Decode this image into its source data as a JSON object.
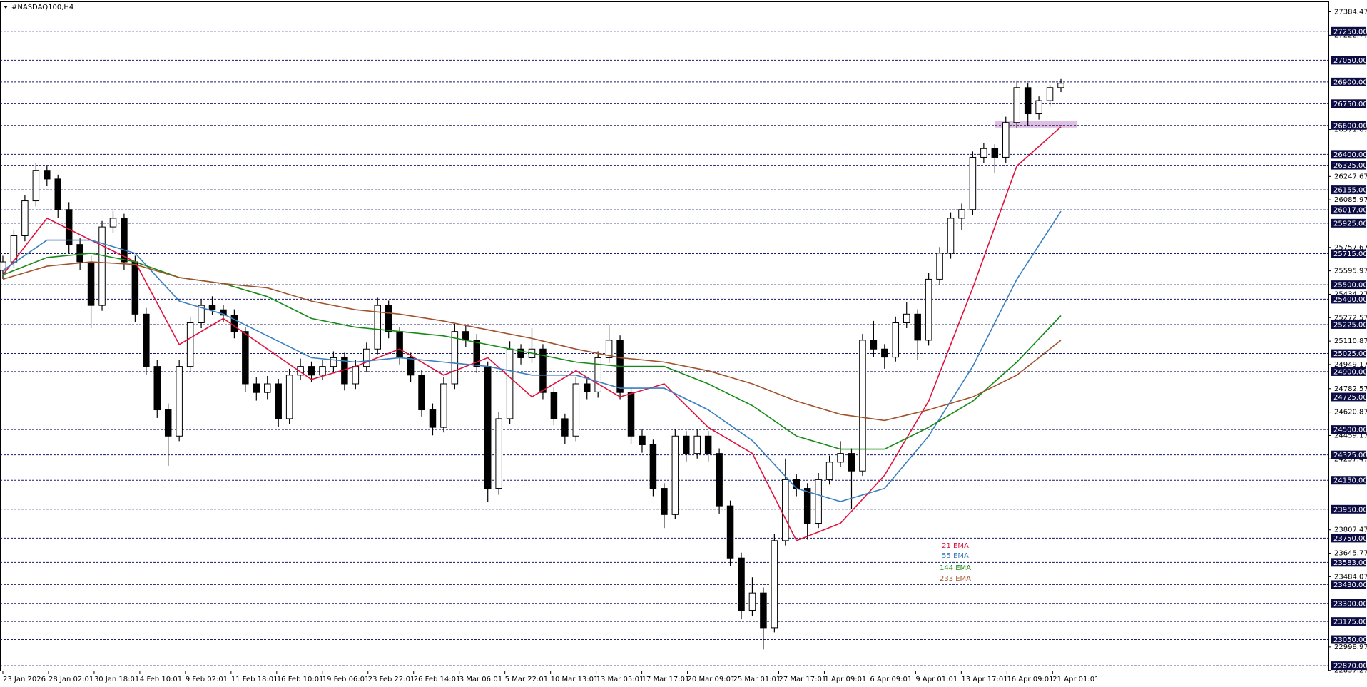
{
  "chart_data": {
    "type": "candlestick",
    "title": "#NASDAQ100,H4",
    "ylim": [
      22831,
      27451
    ],
    "yticks": [
      27384.47,
      27222.77,
      26571.67,
      26247.67,
      26085.97,
      25757.67,
      25595.97,
      25434.27,
      25272.57,
      25110.87,
      24949.17,
      24782.57,
      24620.87,
      24459.17,
      24297.47,
      23807.47,
      23645.77,
      23484.07,
      22998.97,
      22837.27
    ],
    "levels": [
      {
        "value": 27250,
        "label": "27250.00"
      },
      {
        "value": 27050,
        "label": "27050.00"
      },
      {
        "value": 26900,
        "label": "26900.00"
      },
      {
        "value": 26750,
        "label": "26750.00"
      },
      {
        "value": 26600,
        "label": "26600.00"
      },
      {
        "value": 26400,
        "label": "26400.00"
      },
      {
        "value": 26325,
        "label": "26325.00"
      },
      {
        "value": 26155,
        "label": "26155.00"
      },
      {
        "value": 26017,
        "label": "26017.00"
      },
      {
        "value": 25925,
        "label": "25925.00"
      },
      {
        "value": 25715,
        "label": "25715.00"
      },
      {
        "value": 25500,
        "label": "25500.00"
      },
      {
        "value": 25400,
        "label": "25400.00"
      },
      {
        "value": 25225,
        "label": "25225.00"
      },
      {
        "value": 25025,
        "label": "25025.00"
      },
      {
        "value": 24900,
        "label": "24900.00"
      },
      {
        "value": 24725,
        "label": "24725.00"
      },
      {
        "value": 24500,
        "label": "24500.00"
      },
      {
        "value": 24325,
        "label": "24325.00"
      },
      {
        "value": 24150,
        "label": "24150.00"
      },
      {
        "value": 23950,
        "label": "23950.00"
      },
      {
        "value": 23750,
        "label": "23750.00"
      },
      {
        "value": 23583,
        "label": "23583.00"
      },
      {
        "value": 23430,
        "label": "23430.00"
      },
      {
        "value": 23300,
        "label": "23300.00"
      },
      {
        "value": 23175,
        "label": "23175.00"
      },
      {
        "value": 23050,
        "label": "23050.00"
      },
      {
        "value": 22870,
        "label": "22870.00"
      }
    ],
    "x_labels": [
      "23 Jan 2026",
      "28 Jan 02:01",
      "30 Jan 18:01",
      "4 Feb 10:01",
      "9 Feb 02:01",
      "11 Feb 18:01",
      "16 Feb 10:01",
      "19 Feb 06:01",
      "23 Feb 22:01",
      "26 Feb 14:01",
      "3 Mar 06:01",
      "5 Mar 22:01",
      "10 Mar 13:01",
      "13 Mar 05:01",
      "17 Mar 17:01",
      "20 Mar 09:01",
      "25 Mar 01:01",
      "27 Mar 17:01",
      "1 Apr 09:01",
      "6 Apr 09:01",
      "9 Apr 01:01",
      "13 Apr 17:01",
      "16 Apr 09:01",
      "21 Apr 01:01"
    ],
    "zone": {
      "from": 26585,
      "to": 26633,
      "color": "#d8b4dc"
    },
    "candles": [
      [
        25600,
        25700,
        25540,
        25658
      ],
      [
        25658,
        25880,
        25620,
        25838
      ],
      [
        25838,
        26120,
        25800,
        26079
      ],
      [
        26079,
        26340,
        26040,
        26290
      ],
      [
        26290,
        26320,
        26180,
        26230
      ],
      [
        26230,
        26260,
        25960,
        26019
      ],
      [
        26019,
        26070,
        25720,
        25778
      ],
      [
        25778,
        25820,
        25600,
        25658
      ],
      [
        25658,
        25700,
        25200,
        25357
      ],
      [
        25357,
        25940,
        25320,
        25899
      ],
      [
        25899,
        26010,
        25860,
        25959
      ],
      [
        25959,
        25990,
        25600,
        25658
      ],
      [
        25658,
        25700,
        25240,
        25297
      ],
      [
        25297,
        25340,
        24880,
        24936
      ],
      [
        24936,
        24980,
        24580,
        24636
      ],
      [
        24636,
        24680,
        24250,
        24455
      ],
      [
        24455,
        24980,
        24420,
        24936
      ],
      [
        24936,
        25280,
        24900,
        25237
      ],
      [
        25237,
        25400,
        25200,
        25357
      ],
      [
        25357,
        25420,
        25290,
        25327
      ],
      [
        25327,
        25360,
        25240,
        25290
      ],
      [
        25290,
        25330,
        25130,
        25177
      ],
      [
        25177,
        25210,
        24760,
        24816
      ],
      [
        24816,
        24860,
        24700,
        24756
      ],
      [
        24756,
        24870,
        24710,
        24816
      ],
      [
        24816,
        24850,
        24520,
        24575
      ],
      [
        24575,
        24920,
        24540,
        24876
      ],
      [
        24876,
        24990,
        24840,
        24936
      ],
      [
        24936,
        24970,
        24830,
        24876
      ],
      [
        24876,
        24980,
        24840,
        24936
      ],
      [
        24936,
        25040,
        24900,
        24996
      ],
      [
        24996,
        25030,
        24770,
        24816
      ],
      [
        24816,
        24980,
        24780,
        24936
      ],
      [
        24936,
        25100,
        24900,
        25056
      ],
      [
        25056,
        25410,
        25020,
        25357
      ],
      [
        25357,
        25390,
        25130,
        25177
      ],
      [
        25177,
        25210,
        24950,
        24996
      ],
      [
        24996,
        25030,
        24830,
        24876
      ],
      [
        24876,
        24910,
        24590,
        24636
      ],
      [
        24636,
        24680,
        24460,
        24515
      ],
      [
        24515,
        24860,
        24480,
        24816
      ],
      [
        24816,
        25230,
        24780,
        25177
      ],
      [
        25177,
        25220,
        25070,
        25117
      ],
      [
        25117,
        25160,
        24890,
        24936
      ],
      [
        24936,
        24970,
        24000,
        24094
      ],
      [
        24094,
        24620,
        24050,
        24575
      ],
      [
        24575,
        25110,
        24540,
        25056
      ],
      [
        25056,
        25090,
        24950,
        24996
      ],
      [
        24996,
        25200,
        24960,
        25056
      ],
      [
        25056,
        25090,
        24710,
        24756
      ],
      [
        24756,
        24790,
        24530,
        24575
      ],
      [
        24575,
        24610,
        24400,
        24455
      ],
      [
        24455,
        24860,
        24420,
        24816
      ],
      [
        24816,
        24850,
        24710,
        24760
      ],
      [
        24760,
        25040,
        24720,
        24996
      ],
      [
        24996,
        25220,
        24960,
        25117
      ],
      [
        25117,
        25150,
        24710,
        24756
      ],
      [
        24756,
        24790,
        24400,
        24455
      ],
      [
        24455,
        24500,
        24340,
        24395
      ],
      [
        24395,
        24430,
        24040,
        24094
      ],
      [
        24094,
        24130,
        23820,
        23913
      ],
      [
        23913,
        24500,
        23880,
        24455
      ],
      [
        24455,
        24490,
        24280,
        24335
      ],
      [
        24335,
        24500,
        24300,
        24455
      ],
      [
        24455,
        24490,
        24280,
        24335
      ],
      [
        24335,
        24370,
        23920,
        23973
      ],
      [
        23973,
        24010,
        23560,
        23613
      ],
      [
        23613,
        23650,
        23190,
        23252
      ],
      [
        23252,
        23480,
        23210,
        23372
      ],
      [
        23372,
        23410,
        22982,
        23132
      ],
      [
        23132,
        23780,
        23100,
        23733
      ],
      [
        23733,
        24300,
        23700,
        24154
      ],
      [
        24154,
        24190,
        24040,
        24094
      ],
      [
        24094,
        24130,
        23740,
        23853
      ],
      [
        23853,
        24200,
        23820,
        24154
      ],
      [
        24154,
        24320,
        24120,
        24275
      ],
      [
        24275,
        24420,
        24240,
        24335
      ],
      [
        24335,
        24370,
        23950,
        24214
      ],
      [
        24214,
        25160,
        24180,
        25117
      ],
      [
        25117,
        25250,
        25000,
        25056
      ],
      [
        25056,
        25090,
        24920,
        25000
      ],
      [
        25000,
        25280,
        24970,
        25237
      ],
      [
        25237,
        25380,
        25200,
        25297
      ],
      [
        25297,
        25330,
        24980,
        25117
      ],
      [
        25117,
        25580,
        25080,
        25538
      ],
      [
        25538,
        25760,
        25500,
        25718
      ],
      [
        25718,
        26000,
        25680,
        25959
      ],
      [
        25959,
        26060,
        25880,
        26019
      ],
      [
        26019,
        26420,
        25980,
        26380
      ],
      [
        26380,
        26480,
        26340,
        26440
      ],
      [
        26440,
        26470,
        26270,
        26380
      ],
      [
        26380,
        26660,
        26340,
        26620
      ],
      [
        26620,
        26910,
        26580,
        26861
      ],
      [
        26861,
        26890,
        26600,
        26680
      ],
      [
        26680,
        26800,
        26640,
        26771
      ],
      [
        26771,
        26880,
        26730,
        26861
      ],
      [
        26861,
        26920,
        26830,
        26891
      ]
    ],
    "series": [
      {
        "name": "21 EMA",
        "color": "#e0123c",
        "values": [
          25568,
          25959,
          25808,
          25658,
          25087,
          25267,
          25056,
          24846,
          24936,
          25056,
          24876,
          24996,
          24726,
          24906,
          24726,
          24816,
          24515,
          24335,
          23733,
          23853,
          24184,
          24696,
          25478,
          26320,
          26590
        ]
      },
      {
        "name": "55 EMA",
        "color": "#3a7fc0",
        "values": [
          25598,
          25808,
          25808,
          25718,
          25387,
          25297,
          25147,
          24996,
          24966,
          24996,
          24966,
          24936,
          24876,
          24876,
          24786,
          24786,
          24636,
          24424,
          24094,
          24003,
          24094,
          24455,
          24936,
          25538,
          26007
        ]
      },
      {
        "name": "144 EMA",
        "color": "#168a16",
        "values": [
          25568,
          25688,
          25718,
          25658,
          25550,
          25508,
          25418,
          25267,
          25207,
          25177,
          25147,
          25087,
          25027,
          24966,
          24936,
          24936,
          24816,
          24665,
          24455,
          24365,
          24365,
          24515,
          24696,
          24966,
          25287
        ]
      },
      {
        "name": "233 EMA",
        "color": "#a0522d",
        "values": [
          25538,
          25628,
          25658,
          25640,
          25550,
          25508,
          25478,
          25387,
          25327,
          25297,
          25249,
          25189,
          25129,
          25056,
          24996,
          24966,
          24906,
          24816,
          24696,
          24605,
          24563,
          24636,
          24726,
          24876,
          25117
        ]
      }
    ]
  }
}
